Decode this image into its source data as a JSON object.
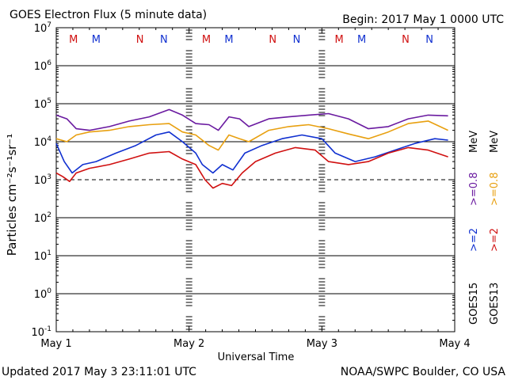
{
  "header": {
    "title": "GOES Electron Flux (5 minute data)",
    "begin": "Begin: 2017 May 1 0000 UTC"
  },
  "footer": {
    "updated": "Updated 2017 May  3 23:11:01 UTC",
    "credit": "NOAA/SWPC Boulder, CO USA"
  },
  "chart_data": {
    "type": "line",
    "title": "GOES Electron Flux (5 minute data)",
    "xlabel": "Universal Time",
    "ylabel": "Particles cm⁻²s⁻¹sr⁻¹",
    "yscale": "log",
    "xlim": [
      0,
      3
    ],
    "ylim_exp": [
      -1,
      7
    ],
    "x_ticks": [
      {
        "x": 0,
        "label": "May 1"
      },
      {
        "x": 1,
        "label": "May 2"
      },
      {
        "x": 2,
        "label": "May 3"
      },
      {
        "x": 3,
        "label": "May 4"
      }
    ],
    "y_ticks": [
      {
        "exp": 7,
        "base": "10",
        "power": "7"
      },
      {
        "exp": 6,
        "base": "10",
        "power": "6"
      },
      {
        "exp": 5,
        "base": "10",
        "power": "5"
      },
      {
        "exp": 4,
        "base": "10",
        "power": "4"
      },
      {
        "exp": 3,
        "base": "10",
        "power": "3"
      },
      {
        "exp": 2,
        "base": "10",
        "power": "2"
      },
      {
        "exp": 1,
        "base": "10",
        "power": "1"
      },
      {
        "exp": 0,
        "base": "10",
        "power": "0"
      },
      {
        "exp": -1,
        "base": "10",
        "power": "-1"
      }
    ],
    "grid_solid_exp": [
      6,
      5,
      4,
      2,
      1,
      0
    ],
    "grid_dashed_exp": [
      3
    ],
    "markers": [
      {
        "x": 0.13,
        "label": "M",
        "color": "#d01010"
      },
      {
        "x": 0.3,
        "label": "M",
        "color": "#1030d0"
      },
      {
        "x": 0.63,
        "label": "N",
        "color": "#d01010"
      },
      {
        "x": 0.81,
        "label": "N",
        "color": "#1030d0"
      },
      {
        "x": 1.13,
        "label": "M",
        "color": "#d01010"
      },
      {
        "x": 1.3,
        "label": "M",
        "color": "#1030d0"
      },
      {
        "x": 1.63,
        "label": "N",
        "color": "#d01010"
      },
      {
        "x": 1.81,
        "label": "N",
        "color": "#1030d0"
      },
      {
        "x": 2.13,
        "label": "M",
        "color": "#d01010"
      },
      {
        "x": 2.3,
        "label": "M",
        "color": "#1030d0"
      },
      {
        "x": 2.63,
        "label": "N",
        "color": "#d01010"
      },
      {
        "x": 2.81,
        "label": "N",
        "color": "#1030d0"
      }
    ],
    "series": [
      {
        "name": ">=0.8 MeV",
        "satellite": "GOES15",
        "color": "#6a1aa0",
        "x": [
          0,
          0.08,
          0.15,
          0.25,
          0.4,
          0.55,
          0.7,
          0.85,
          0.95,
          1.05,
          1.15,
          1.22,
          1.3,
          1.38,
          1.45,
          1.6,
          1.75,
          1.9,
          2.05,
          2.2,
          2.35,
          2.5,
          2.65,
          2.8,
          2.95
        ],
        "y": [
          50000,
          40000,
          22000,
          20000,
          25000,
          35000,
          45000,
          70000,
          50000,
          30000,
          28000,
          20000,
          45000,
          40000,
          25000,
          40000,
          45000,
          50000,
          55000,
          40000,
          22000,
          25000,
          40000,
          50000,
          48000
        ]
      },
      {
        "name": ">=0.8 MeV",
        "satellite": "GOES13",
        "color": "#e8a010",
        "x": [
          0,
          0.08,
          0.15,
          0.25,
          0.4,
          0.55,
          0.7,
          0.85,
          0.95,
          1.05,
          1.15,
          1.22,
          1.3,
          1.38,
          1.45,
          1.6,
          1.75,
          1.9,
          2.05,
          2.2,
          2.35,
          2.5,
          2.65,
          2.8,
          2.95
        ],
        "y": [
          12000,
          10000,
          15000,
          18000,
          20000,
          25000,
          28000,
          30000,
          18000,
          15000,
          8000,
          6000,
          15000,
          12000,
          10000,
          20000,
          25000,
          28000,
          22000,
          16000,
          12000,
          18000,
          30000,
          35000,
          20000
        ]
      },
      {
        "name": ">=2 MeV",
        "satellite": "GOES15",
        "color": "#1030d0",
        "x": [
          0,
          0.06,
          0.12,
          0.2,
          0.3,
          0.45,
          0.6,
          0.75,
          0.85,
          0.95,
          1.05,
          1.1,
          1.18,
          1.25,
          1.33,
          1.42,
          1.55,
          1.7,
          1.85,
          2.0,
          2.1,
          2.25,
          2.4,
          2.55,
          2.7,
          2.85,
          2.95
        ],
        "y": [
          9000,
          3000,
          1500,
          2500,
          3000,
          5000,
          8000,
          15000,
          18000,
          10000,
          5000,
          2500,
          1500,
          2500,
          1800,
          5000,
          8000,
          12000,
          15000,
          12000,
          5000,
          3000,
          4000,
          6000,
          9000,
          12000,
          11000
        ]
      },
      {
        "name": ">=2 MeV",
        "satellite": "GOES13",
        "color": "#d01010",
        "x": [
          0,
          0.05,
          0.1,
          0.15,
          0.25,
          0.4,
          0.55,
          0.7,
          0.85,
          0.95,
          1.05,
          1.12,
          1.18,
          1.25,
          1.32,
          1.4,
          1.5,
          1.65,
          1.8,
          1.95,
          2.05,
          2.2,
          2.35,
          2.5,
          2.65,
          2.8,
          2.95
        ],
        "y": [
          1500,
          1200,
          900,
          1500,
          2000,
          2500,
          3500,
          5000,
          5500,
          3500,
          2500,
          1000,
          600,
          800,
          700,
          1500,
          3000,
          5000,
          7000,
          6000,
          3000,
          2500,
          3000,
          5000,
          7000,
          6000,
          4000
        ]
      }
    ],
    "legend": {
      "placement": "right",
      "groups": [
        {
          "satellite": "GOES15",
          "items": [
            {
              "text": ">=2",
              "color": "#1030d0"
            },
            {
              "text": ">=0.8",
              "color": "#6a1aa0"
            }
          ]
        },
        {
          "satellite": "GOES13",
          "items": [
            {
              "text": ">=2",
              "color": "#d01010"
            },
            {
              "text": ">=0.8",
              "color": "#e8a010"
            }
          ]
        }
      ],
      "unit": "MeV"
    }
  }
}
